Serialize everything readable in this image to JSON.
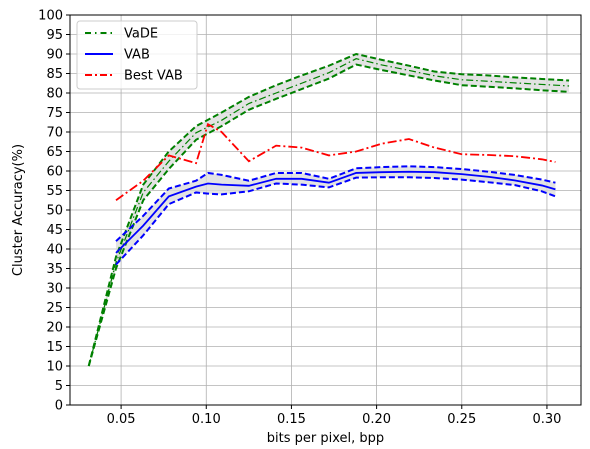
{
  "chart_data": {
    "type": "line",
    "title": "",
    "xlabel": "bits per pixel, bpp",
    "ylabel": "Cluster Accuracy(%)",
    "xlim": [
      0.02,
      0.32
    ],
    "ylim": [
      0,
      100
    ],
    "xticks": [
      0.05,
      0.1,
      0.15,
      0.2,
      0.25,
      0.3
    ],
    "xtick_labels": [
      "0.05",
      "0.10",
      "0.15",
      "0.20",
      "0.25",
      "0.30"
    ],
    "yticks": [
      0,
      5,
      10,
      15,
      20,
      25,
      30,
      35,
      40,
      45,
      50,
      55,
      60,
      65,
      70,
      75,
      80,
      85,
      90,
      95,
      100
    ],
    "ytick_labels": [
      "0",
      "5",
      "10",
      "15",
      "20",
      "25",
      "30",
      "35",
      "40",
      "45",
      "50",
      "55",
      "60",
      "65",
      "70",
      "75",
      "80",
      "85",
      "90",
      "95",
      "100"
    ],
    "grid": true,
    "legend_position": "top-left",
    "series": [
      {
        "name": "VaDE",
        "color": "#008000",
        "style": "dashdot-band",
        "x": [
          0.031,
          0.047,
          0.063,
          0.078,
          0.094,
          0.109,
          0.125,
          0.141,
          0.156,
          0.172,
          0.188,
          0.203,
          0.219,
          0.234,
          0.25,
          0.266,
          0.281,
          0.297,
          0.313
        ],
        "upper": [
          10.0,
          38.0,
          56.5,
          65.0,
          71.5,
          75.0,
          79.0,
          82.0,
          84.5,
          87.0,
          90.0,
          88.5,
          87.0,
          85.5,
          84.8,
          84.5,
          84.0,
          83.6,
          83.2
        ],
        "mean": [
          10.0,
          36.5,
          54.5,
          62.5,
          69.8,
          73.0,
          77.3,
          80.0,
          82.5,
          85.2,
          88.8,
          87.2,
          85.8,
          84.4,
          83.4,
          83.0,
          82.6,
          82.2,
          81.8
        ],
        "lower": [
          10.0,
          35.0,
          52.5,
          60.5,
          68.0,
          71.5,
          75.7,
          78.5,
          81.0,
          83.7,
          87.3,
          85.9,
          84.5,
          83.2,
          82.0,
          81.6,
          81.2,
          80.7,
          80.3
        ]
      },
      {
        "name": "VAB",
        "color": "#0000ff",
        "style": "solid-band",
        "x": [
          0.047,
          0.063,
          0.078,
          0.094,
          0.101,
          0.109,
          0.125,
          0.141,
          0.156,
          0.172,
          0.188,
          0.203,
          0.219,
          0.234,
          0.25,
          0.266,
          0.281,
          0.297,
          0.305
        ],
        "upper": [
          42.0,
          48.5,
          55.5,
          57.5,
          59.5,
          59.0,
          57.5,
          59.5,
          59.5,
          58.0,
          60.7,
          61.0,
          61.2,
          61.0,
          60.5,
          59.8,
          59.0,
          57.8,
          57.0
        ],
        "mean": [
          39.0,
          46.0,
          53.5,
          56.0,
          56.8,
          56.5,
          56.2,
          58.0,
          58.0,
          57.0,
          59.5,
          59.7,
          59.8,
          59.7,
          59.2,
          58.5,
          57.6,
          56.3,
          55.3
        ],
        "lower": [
          36.0,
          43.5,
          51.5,
          54.5,
          54.2,
          54.0,
          54.8,
          56.8,
          56.5,
          55.8,
          58.3,
          58.4,
          58.4,
          58.2,
          57.8,
          57.1,
          56.4,
          54.8,
          53.5
        ]
      },
      {
        "name": "Best VAB",
        "color": "#ff0000",
        "style": "dashdot",
        "x": [
          0.047,
          0.063,
          0.078,
          0.094,
          0.101,
          0.109,
          0.125,
          0.141,
          0.156,
          0.172,
          0.188,
          0.203,
          0.219,
          0.234,
          0.25,
          0.266,
          0.281,
          0.297,
          0.305
        ],
        "values": [
          52.5,
          57.5,
          64.0,
          62.0,
          72.0,
          70.0,
          62.5,
          66.5,
          66.0,
          64.0,
          65.0,
          67.0,
          68.2,
          66.0,
          64.3,
          64.1,
          63.8,
          63.0,
          62.3
        ]
      }
    ]
  }
}
